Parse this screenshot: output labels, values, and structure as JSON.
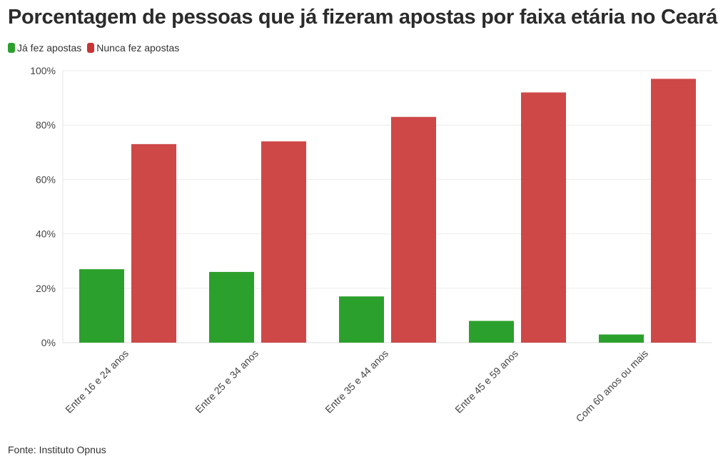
{
  "chart_data": {
    "type": "bar",
    "title": "Porcentagem de pessoas que já fizeram apostas por faixa etária no Ceará",
    "categories": [
      "Entre 16 e 24 anos",
      "Entre 25 e 34 anos",
      "Entre 35 e 44 anos",
      "Entre 45 e 59 anos",
      "Com 60 anos ou mais"
    ],
    "series": [
      {
        "name": "Já fez apostas",
        "color": "#2ca02c",
        "values": [
          27,
          26,
          17,
          8,
          3
        ]
      },
      {
        "name": "Nunca fez apostas",
        "color": "#c93434",
        "values": [
          73,
          74,
          83,
          92,
          97
        ]
      }
    ],
    "yticks": [
      "0%",
      "20%",
      "40%",
      "60%",
      "80%",
      "100%"
    ],
    "ylim": [
      0,
      100
    ],
    "grid": true,
    "legend_position": "top-left"
  },
  "source": "Fonte: Instituto Opnus"
}
